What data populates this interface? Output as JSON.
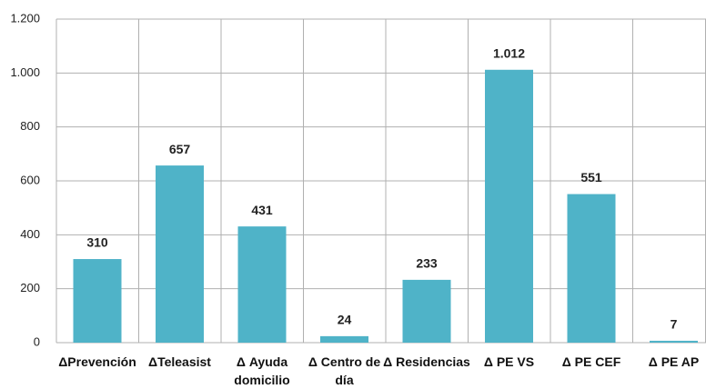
{
  "chart_data": {
    "type": "bar",
    "categories": [
      "ΔPrevención",
      "ΔTeleasist",
      "Δ Ayuda domicilio",
      "Δ Centro de día",
      "Δ Residencias",
      "Δ PE VS",
      "Δ PE CEF",
      "Δ PE AP"
    ],
    "values": [
      310,
      657,
      431,
      24,
      233,
      1012,
      551,
      7
    ],
    "value_labels": [
      "310",
      "657",
      "431",
      "24",
      "233",
      "1.012",
      "551",
      "7"
    ],
    "color": "#4fb3c8",
    "ylim": [
      0,
      1200
    ],
    "yticks": [
      0,
      200,
      400,
      600,
      800,
      {
        "value": 1000,
        "label": "1.000"
      },
      {
        "value": 1200,
        "label": "1.200"
      }
    ],
    "grid": true
  }
}
